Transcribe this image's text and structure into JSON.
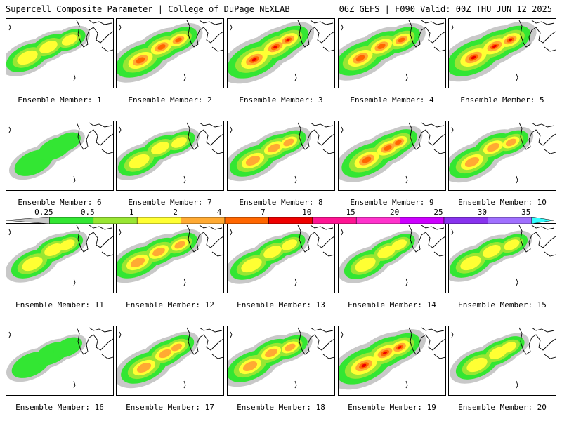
{
  "header": {
    "left": "Supercell Composite Parameter | College of DuPage NEXLAB",
    "right": "06Z GEFS | F090 Valid: 00Z THU JUN 12 2025"
  },
  "legend": {
    "ticks": [
      "0.25",
      "0.5",
      "1",
      "2",
      "4",
      "7",
      "10",
      "15",
      "20",
      "25",
      "30",
      "35"
    ],
    "colors": [
      "#c8c8c8",
      "#33e633",
      "#99e633",
      "#ffff33",
      "#ffaa33",
      "#ff6600",
      "#ee0000",
      "#ff1493",
      "#ff33cc",
      "#cc00ff",
      "#8833ee",
      "#a070ff",
      "#33ffff"
    ]
  },
  "map_colors": {
    "bg": "#ffffff",
    "gray": "#c8c8c8",
    "green": "#33e633",
    "lightgreen": "#99e633",
    "yellow": "#ffff33",
    "orange": "#ffaa33",
    "darkorange": "#ff6600",
    "red": "#ee0000"
  },
  "panels": [
    {
      "label": "Ensemble Member: 1",
      "intensity": 2
    },
    {
      "label": "Ensemble Member: 2",
      "intensity": 4
    },
    {
      "label": "Ensemble Member: 3",
      "intensity": 5
    },
    {
      "label": "Ensemble Member: 4",
      "intensity": 4
    },
    {
      "label": "Ensemble Member: 5",
      "intensity": 5
    },
    {
      "label": "Ensemble Member: 6",
      "intensity": 1
    },
    {
      "label": "Ensemble Member: 7",
      "intensity": 2
    },
    {
      "label": "Ensemble Member: 8",
      "intensity": 3
    },
    {
      "label": "Ensemble Member: 9",
      "intensity": 4
    },
    {
      "label": "Ensemble Member: 10",
      "intensity": 3
    },
    {
      "label": "Ensemble Member: 11",
      "intensity": 2
    },
    {
      "label": "Ensemble Member: 12",
      "intensity": 3
    },
    {
      "label": "Ensemble Member: 13",
      "intensity": 2
    },
    {
      "label": "Ensemble Member: 14",
      "intensity": 2
    },
    {
      "label": "Ensemble Member: 15",
      "intensity": 2
    },
    {
      "label": "Ensemble Member: 16",
      "intensity": 1
    },
    {
      "label": "Ensemble Member: 17",
      "intensity": 3
    },
    {
      "label": "Ensemble Member: 18",
      "intensity": 3
    },
    {
      "label": "Ensemble Member: 19",
      "intensity": 5
    },
    {
      "label": "Ensemble Member: 20",
      "intensity": 2
    }
  ]
}
